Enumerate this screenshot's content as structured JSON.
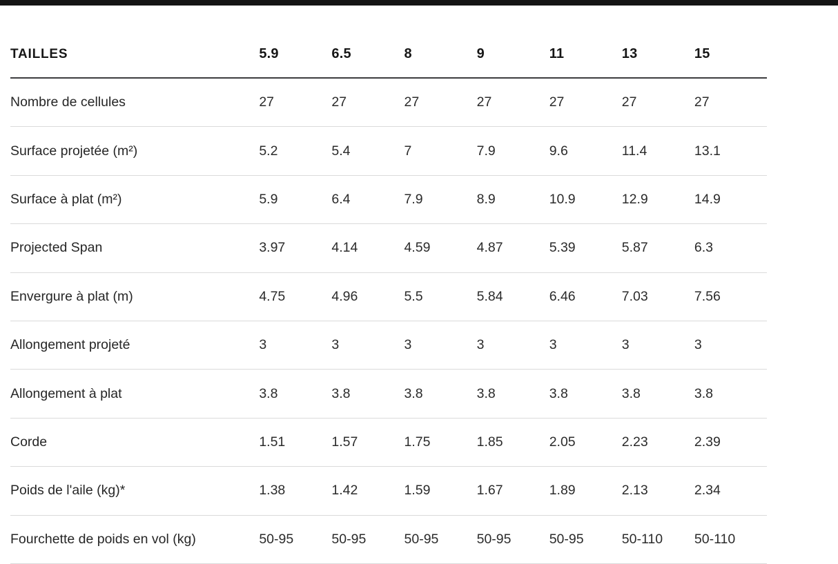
{
  "page": {
    "top_bar_color": "#151515",
    "background_color": "#ffffff",
    "header_rule_color": "#3c3c3e",
    "row_rule_color": "#dadada",
    "text_color": "#2b2b2b"
  },
  "table": {
    "header": {
      "label": "TAILLES",
      "sizes": [
        "5.9",
        "6.5",
        "8",
        "9",
        "11",
        "13",
        "15"
      ]
    },
    "rows": [
      {
        "label": "Nombre de cellules",
        "values": [
          "27",
          "27",
          "27",
          "27",
          "27",
          "27",
          "27"
        ]
      },
      {
        "label": "Surface projetée (m²)",
        "values": [
          "5.2",
          "5.4",
          "7",
          "7.9",
          "9.6",
          "11.4",
          "13.1"
        ]
      },
      {
        "label": "Surface à plat (m²)",
        "values": [
          "5.9",
          "6.4",
          "7.9",
          "8.9",
          "10.9",
          "12.9",
          "14.9"
        ]
      },
      {
        "label": "Projected Span",
        "values": [
          "3.97",
          "4.14",
          "4.59",
          "4.87",
          "5.39",
          "5.87",
          "6.3"
        ]
      },
      {
        "label": "Envergure à plat (m)",
        "values": [
          "4.75",
          "4.96",
          "5.5",
          "5.84",
          "6.46",
          "7.03",
          "7.56"
        ]
      },
      {
        "label": "Allongement projeté",
        "values": [
          "3",
          "3",
          "3",
          "3",
          "3",
          "3",
          "3"
        ]
      },
      {
        "label": "Allongement à plat",
        "values": [
          "3.8",
          "3.8",
          "3.8",
          "3.8",
          "3.8",
          "3.8",
          "3.8"
        ]
      },
      {
        "label": "Corde",
        "values": [
          "1.51",
          "1.57",
          "1.75",
          "1.85",
          "2.05",
          "2.23",
          "2.39"
        ]
      },
      {
        "label": "Poids de l'aile (kg)*",
        "values": [
          "1.38",
          "1.42",
          "1.59",
          "1.67",
          "1.89",
          "2.13",
          "2.34"
        ]
      },
      {
        "label": "Fourchette de poids en vol (kg)",
        "values": [
          "50-95",
          "50-95",
          "50-95",
          "50-95",
          "50-95",
          "50-110",
          "50-110"
        ]
      }
    ]
  }
}
